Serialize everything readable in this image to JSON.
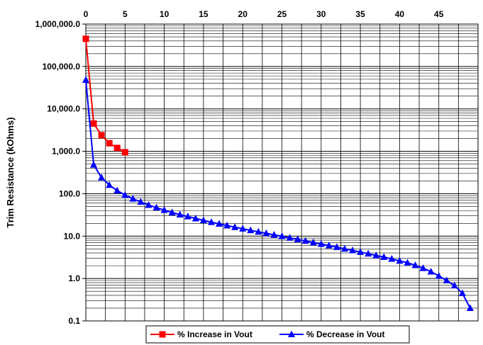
{
  "chart_data": {
    "type": "line",
    "xlabel": "",
    "ylabel": "Trim Resistance (kOhms)",
    "x_axis_position": "top",
    "xlim": [
      0,
      50
    ],
    "ylim": [
      0.1,
      1000000
    ],
    "yscale": "log",
    "x_ticks": [
      "0",
      "5",
      "10",
      "15",
      "20",
      "25",
      "30",
      "35",
      "40",
      "45"
    ],
    "y_ticks": [
      "0.1",
      "1.0",
      "10.0",
      "100.0",
      "1,000.0",
      "10,000.0",
      "100,000.0",
      "1,000,000.0"
    ],
    "grid": true,
    "legend_position": "bottom",
    "series": [
      {
        "name": "% Increase in Vout",
        "color": "#ff0000",
        "marker": "square",
        "x": [
          0,
          1,
          2,
          3,
          4,
          5
        ],
        "y": [
          450000,
          4500,
          2400,
          1550,
          1200,
          950
        ]
      },
      {
        "name": "% Decrease in Vout",
        "color": "#0000ff",
        "marker": "triangle",
        "x": [
          0,
          1,
          2,
          3,
          4,
          5,
          6,
          7,
          8,
          9,
          10,
          11,
          12,
          13,
          14,
          15,
          16,
          17,
          18,
          19,
          20,
          21,
          22,
          23,
          24,
          25,
          26,
          27,
          28,
          29,
          30,
          31,
          32,
          33,
          34,
          35,
          36,
          37,
          38,
          39,
          40,
          41,
          42,
          43,
          44,
          45,
          46,
          47,
          48,
          49
        ],
        "y": [
          48000,
          480,
          240,
          160,
          118,
          93,
          76,
          64,
          54,
          47,
          41,
          36,
          32,
          29,
          26,
          23.5,
          21.3,
          19.4,
          17.7,
          16.2,
          14.9,
          13.7,
          12.6,
          11.6,
          10.7,
          9.9,
          9.1,
          8.4,
          7.7,
          7.1,
          6.5,
          6.0,
          5.5,
          5.0,
          4.6,
          4.2,
          3.85,
          3.5,
          3.2,
          2.9,
          2.6,
          2.35,
          2.05,
          1.75,
          1.45,
          1.15,
          0.9,
          0.68,
          0.45,
          0.2
        ]
      }
    ]
  }
}
